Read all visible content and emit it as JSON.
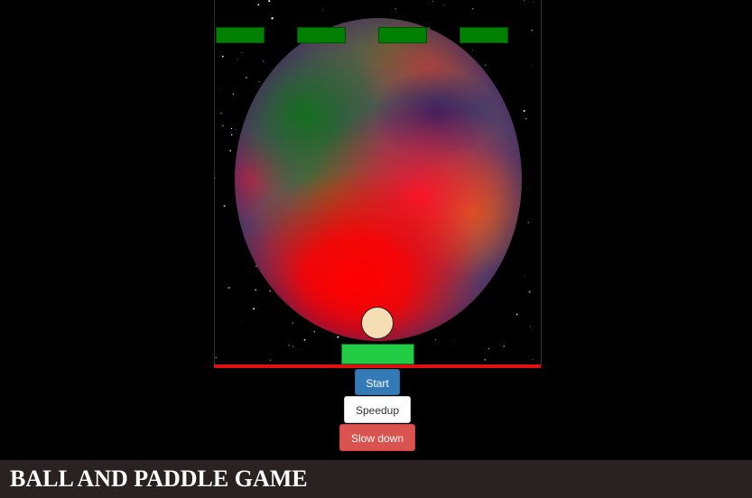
{
  "game": {
    "bricks": [
      {
        "name": "brick-1",
        "color": "#008000"
      },
      {
        "name": "brick-2",
        "color": "#008000"
      },
      {
        "name": "brick-3",
        "color": "#008000"
      },
      {
        "name": "brick-4",
        "color": "#008000"
      }
    ],
    "ball_color": "#f5deb3",
    "paddle_color": "#22cc44",
    "floor_color": "#e01010",
    "background": "space-with-planet"
  },
  "controls": {
    "start_label": "Start",
    "speedup_label": "Speedup",
    "slowdown_label": "Slow down"
  },
  "footer": {
    "title": "BALL AND PADDLE GAME"
  }
}
